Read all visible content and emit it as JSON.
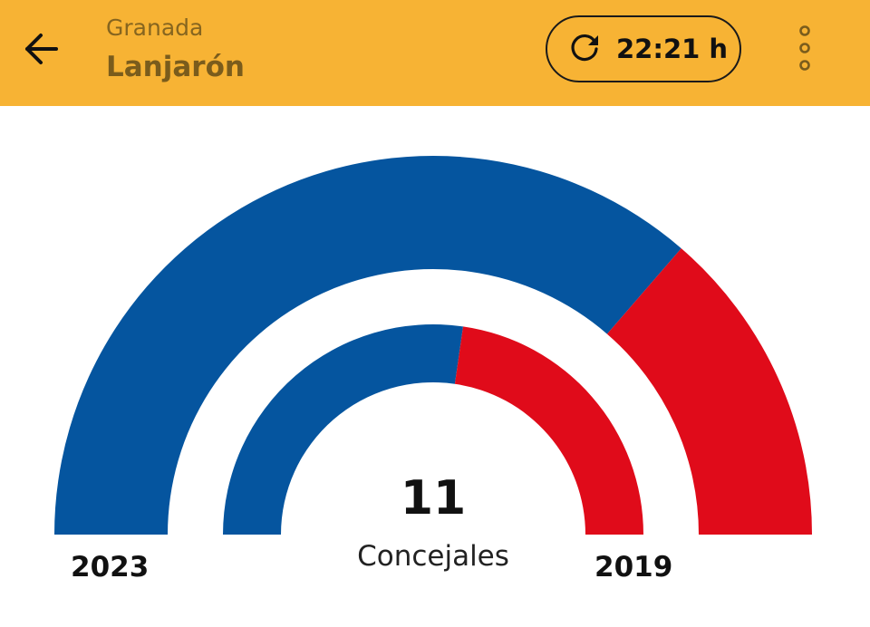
{
  "header": {
    "province": "Granada",
    "town": "Lanjarón",
    "update_time": "22:21 h",
    "back_icon": "arrow-left-icon",
    "refresh_icon": "refresh-icon",
    "menu_icon": "more-vertical-icon"
  },
  "colors": {
    "header_bg": "#F7B334",
    "province_text": "#86651F",
    "town_text": "#7A5C1C",
    "party_blue": "#05559F",
    "party_red": "#E00B1A"
  },
  "summary": {
    "total_seats": "11",
    "seats_label": "Concejales"
  },
  "chart_data": {
    "type": "pie",
    "variant": "nested-semicircle",
    "total": 11,
    "rings": [
      {
        "year": "2023",
        "ring": "outer",
        "segments": [
          {
            "color": "#05559F",
            "value": 8
          },
          {
            "color": "#E00B1A",
            "value": 3
          }
        ]
      },
      {
        "year": "2019",
        "ring": "inner",
        "segments": [
          {
            "color": "#05559F",
            "value": 6
          },
          {
            "color": "#E00B1A",
            "value": 5
          }
        ]
      }
    ],
    "year_labels": {
      "left": "2023",
      "right": "2019"
    }
  }
}
